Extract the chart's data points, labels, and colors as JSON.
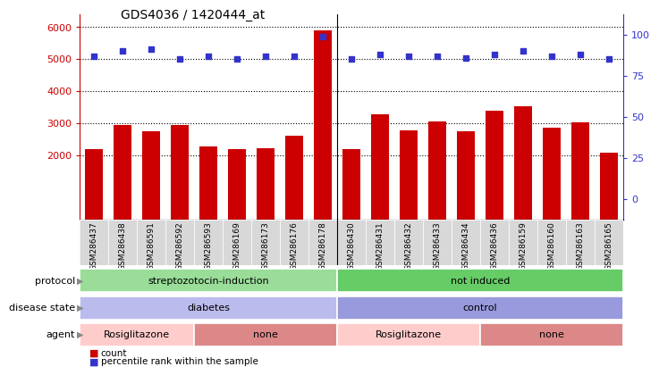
{
  "title": "GDS4036 / 1420444_at",
  "samples": [
    "GSM286437",
    "GSM286438",
    "GSM286591",
    "GSM286592",
    "GSM286593",
    "GSM286169",
    "GSM286173",
    "GSM286176",
    "GSM286178",
    "GSM286430",
    "GSM286431",
    "GSM286432",
    "GSM286433",
    "GSM286434",
    "GSM286436",
    "GSM286159",
    "GSM286160",
    "GSM286163",
    "GSM286165"
  ],
  "counts": [
    2200,
    2950,
    2750,
    2950,
    2280,
    2200,
    2230,
    2600,
    5900,
    2200,
    3270,
    2780,
    3040,
    2760,
    3380,
    3520,
    2870,
    3020,
    2090
  ],
  "percentiles": [
    87,
    90,
    91,
    85,
    87,
    85,
    87,
    87,
    99,
    85,
    88,
    87,
    87,
    86,
    88,
    90,
    87,
    88,
    85
  ],
  "ylim_left": [
    0,
    6400
  ],
  "ylim_right": [
    -12.5,
    112.5
  ],
  "yticks_left": [
    2000,
    3000,
    4000,
    5000,
    6000
  ],
  "yticks_right": [
    0,
    25,
    50,
    75,
    100
  ],
  "bar_color": "#cc0000",
  "dot_color": "#3333cc",
  "protocol_groups": [
    {
      "label": "streptozotocin-induction",
      "start": 0,
      "end": 9,
      "color": "#99dd99"
    },
    {
      "label": "not induced",
      "start": 9,
      "end": 19,
      "color": "#66cc66"
    }
  ],
  "disease_groups": [
    {
      "label": "diabetes",
      "start": 0,
      "end": 9,
      "color": "#bbbbee"
    },
    {
      "label": "control",
      "start": 9,
      "end": 19,
      "color": "#9999dd"
    }
  ],
  "agent_groups": [
    {
      "label": "Rosiglitazone",
      "start": 0,
      "end": 4,
      "color": "#ffcccc"
    },
    {
      "label": "none",
      "start": 4,
      "end": 9,
      "color": "#dd8888"
    },
    {
      "label": "Rosiglitazone",
      "start": 9,
      "end": 14,
      "color": "#ffcccc"
    },
    {
      "label": "none",
      "start": 14,
      "end": 19,
      "color": "#dd8888"
    }
  ],
  "divider_positions": [
    9
  ],
  "tick_label_bg": "#dddddd",
  "bar_bottom": 0
}
